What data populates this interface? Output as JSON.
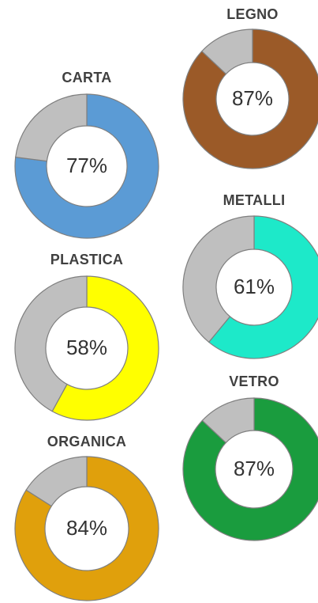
{
  "chart_data": [
    {
      "type": "pie",
      "title": "LEGNO",
      "values": [
        87,
        13
      ],
      "label": "87%",
      "colors": [
        "#9b5a28",
        "#bfbfbf"
      ]
    },
    {
      "type": "pie",
      "title": "CARTA",
      "values": [
        77,
        23
      ],
      "label": "77%",
      "colors": [
        "#5b9bd5",
        "#bfbfbf"
      ]
    },
    {
      "type": "pie",
      "title": "METALLI",
      "values": [
        61,
        39
      ],
      "label": "61%",
      "colors": [
        "#1de9c9",
        "#bfbfbf"
      ]
    },
    {
      "type": "pie",
      "title": "PLASTICA",
      "values": [
        58,
        42
      ],
      "label": "58%",
      "colors": [
        "#ffff00",
        "#bfbfbf"
      ]
    },
    {
      "type": "pie",
      "title": "VETRO",
      "values": [
        87,
        13
      ],
      "label": "87%",
      "colors": [
        "#1a9c3e",
        "#bfbfbf"
      ]
    },
    {
      "type": "pie",
      "title": "ORGANICA",
      "values": [
        84,
        16
      ],
      "label": "84%",
      "colors": [
        "#e0a00c",
        "#bfbfbf"
      ]
    }
  ]
}
